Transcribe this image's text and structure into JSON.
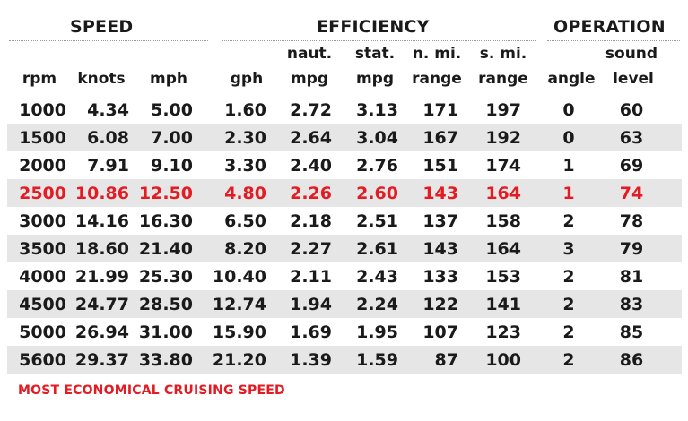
{
  "groups": {
    "speed": "SPEED",
    "efficiency": "EFFICIENCY",
    "operation": "OPERATION"
  },
  "headers": {
    "top": {
      "naut": "naut.",
      "stat": "stat.",
      "nmi": "n. mi.",
      "smi": "s. mi.",
      "sound": "sound"
    },
    "bottom": {
      "rpm": "rpm",
      "knots": "knots",
      "mph": "mph",
      "gph": "gph",
      "naut_mpg": "mpg",
      "stat_mpg": "mpg",
      "nmi_range": "range",
      "smi_range": "range",
      "angle": "angle",
      "level": "level"
    }
  },
  "rows": [
    {
      "rpm": "1000",
      "knots": "4.34",
      "mph": "5.00",
      "gph": "1.60",
      "naut_mpg": "2.72",
      "stat_mpg": "3.13",
      "nmi_range": "171",
      "smi_range": "197",
      "angle": "0",
      "sound": "60"
    },
    {
      "rpm": "1500",
      "knots": "6.08",
      "mph": "7.00",
      "gph": "2.30",
      "naut_mpg": "2.64",
      "stat_mpg": "3.04",
      "nmi_range": "167",
      "smi_range": "192",
      "angle": "0",
      "sound": "63"
    },
    {
      "rpm": "2000",
      "knots": "7.91",
      "mph": "9.10",
      "gph": "3.30",
      "naut_mpg": "2.40",
      "stat_mpg": "2.76",
      "nmi_range": "151",
      "smi_range": "174",
      "angle": "1",
      "sound": "69"
    },
    {
      "rpm": "2500",
      "knots": "10.86",
      "mph": "12.50",
      "gph": "4.80",
      "naut_mpg": "2.26",
      "stat_mpg": "2.60",
      "nmi_range": "143",
      "smi_range": "164",
      "angle": "1",
      "sound": "74"
    },
    {
      "rpm": "3000",
      "knots": "14.16",
      "mph": "16.30",
      "gph": "6.50",
      "naut_mpg": "2.18",
      "stat_mpg": "2.51",
      "nmi_range": "137",
      "smi_range": "158",
      "angle": "2",
      "sound": "78"
    },
    {
      "rpm": "3500",
      "knots": "18.60",
      "mph": "21.40",
      "gph": "8.20",
      "naut_mpg": "2.27",
      "stat_mpg": "2.61",
      "nmi_range": "143",
      "smi_range": "164",
      "angle": "3",
      "sound": "79"
    },
    {
      "rpm": "4000",
      "knots": "21.99",
      "mph": "25.30",
      "gph": "10.40",
      "naut_mpg": "2.11",
      "stat_mpg": "2.43",
      "nmi_range": "133",
      "smi_range": "153",
      "angle": "2",
      "sound": "81"
    },
    {
      "rpm": "4500",
      "knots": "24.77",
      "mph": "28.50",
      "gph": "12.74",
      "naut_mpg": "1.94",
      "stat_mpg": "2.24",
      "nmi_range": "122",
      "smi_range": "141",
      "angle": "2",
      "sound": "83"
    },
    {
      "rpm": "5000",
      "knots": "26.94",
      "mph": "31.00",
      "gph": "15.90",
      "naut_mpg": "1.69",
      "stat_mpg": "1.95",
      "nmi_range": "107",
      "smi_range": "123",
      "angle": "2",
      "sound": "85"
    },
    {
      "rpm": "5600",
      "knots": "29.37",
      "mph": "33.80",
      "gph": "21.20",
      "naut_mpg": "1.39",
      "stat_mpg": "1.59",
      "nmi_range": "87",
      "smi_range": "100",
      "angle": "2",
      "sound": "86"
    }
  ],
  "highlight_rpm": "2500",
  "footnote": "MOST ECONOMICAL CRUISING SPEED",
  "colors": {
    "highlight": "#e31b23",
    "shade": "#e6e6e6",
    "text": "#1a1a1a"
  }
}
